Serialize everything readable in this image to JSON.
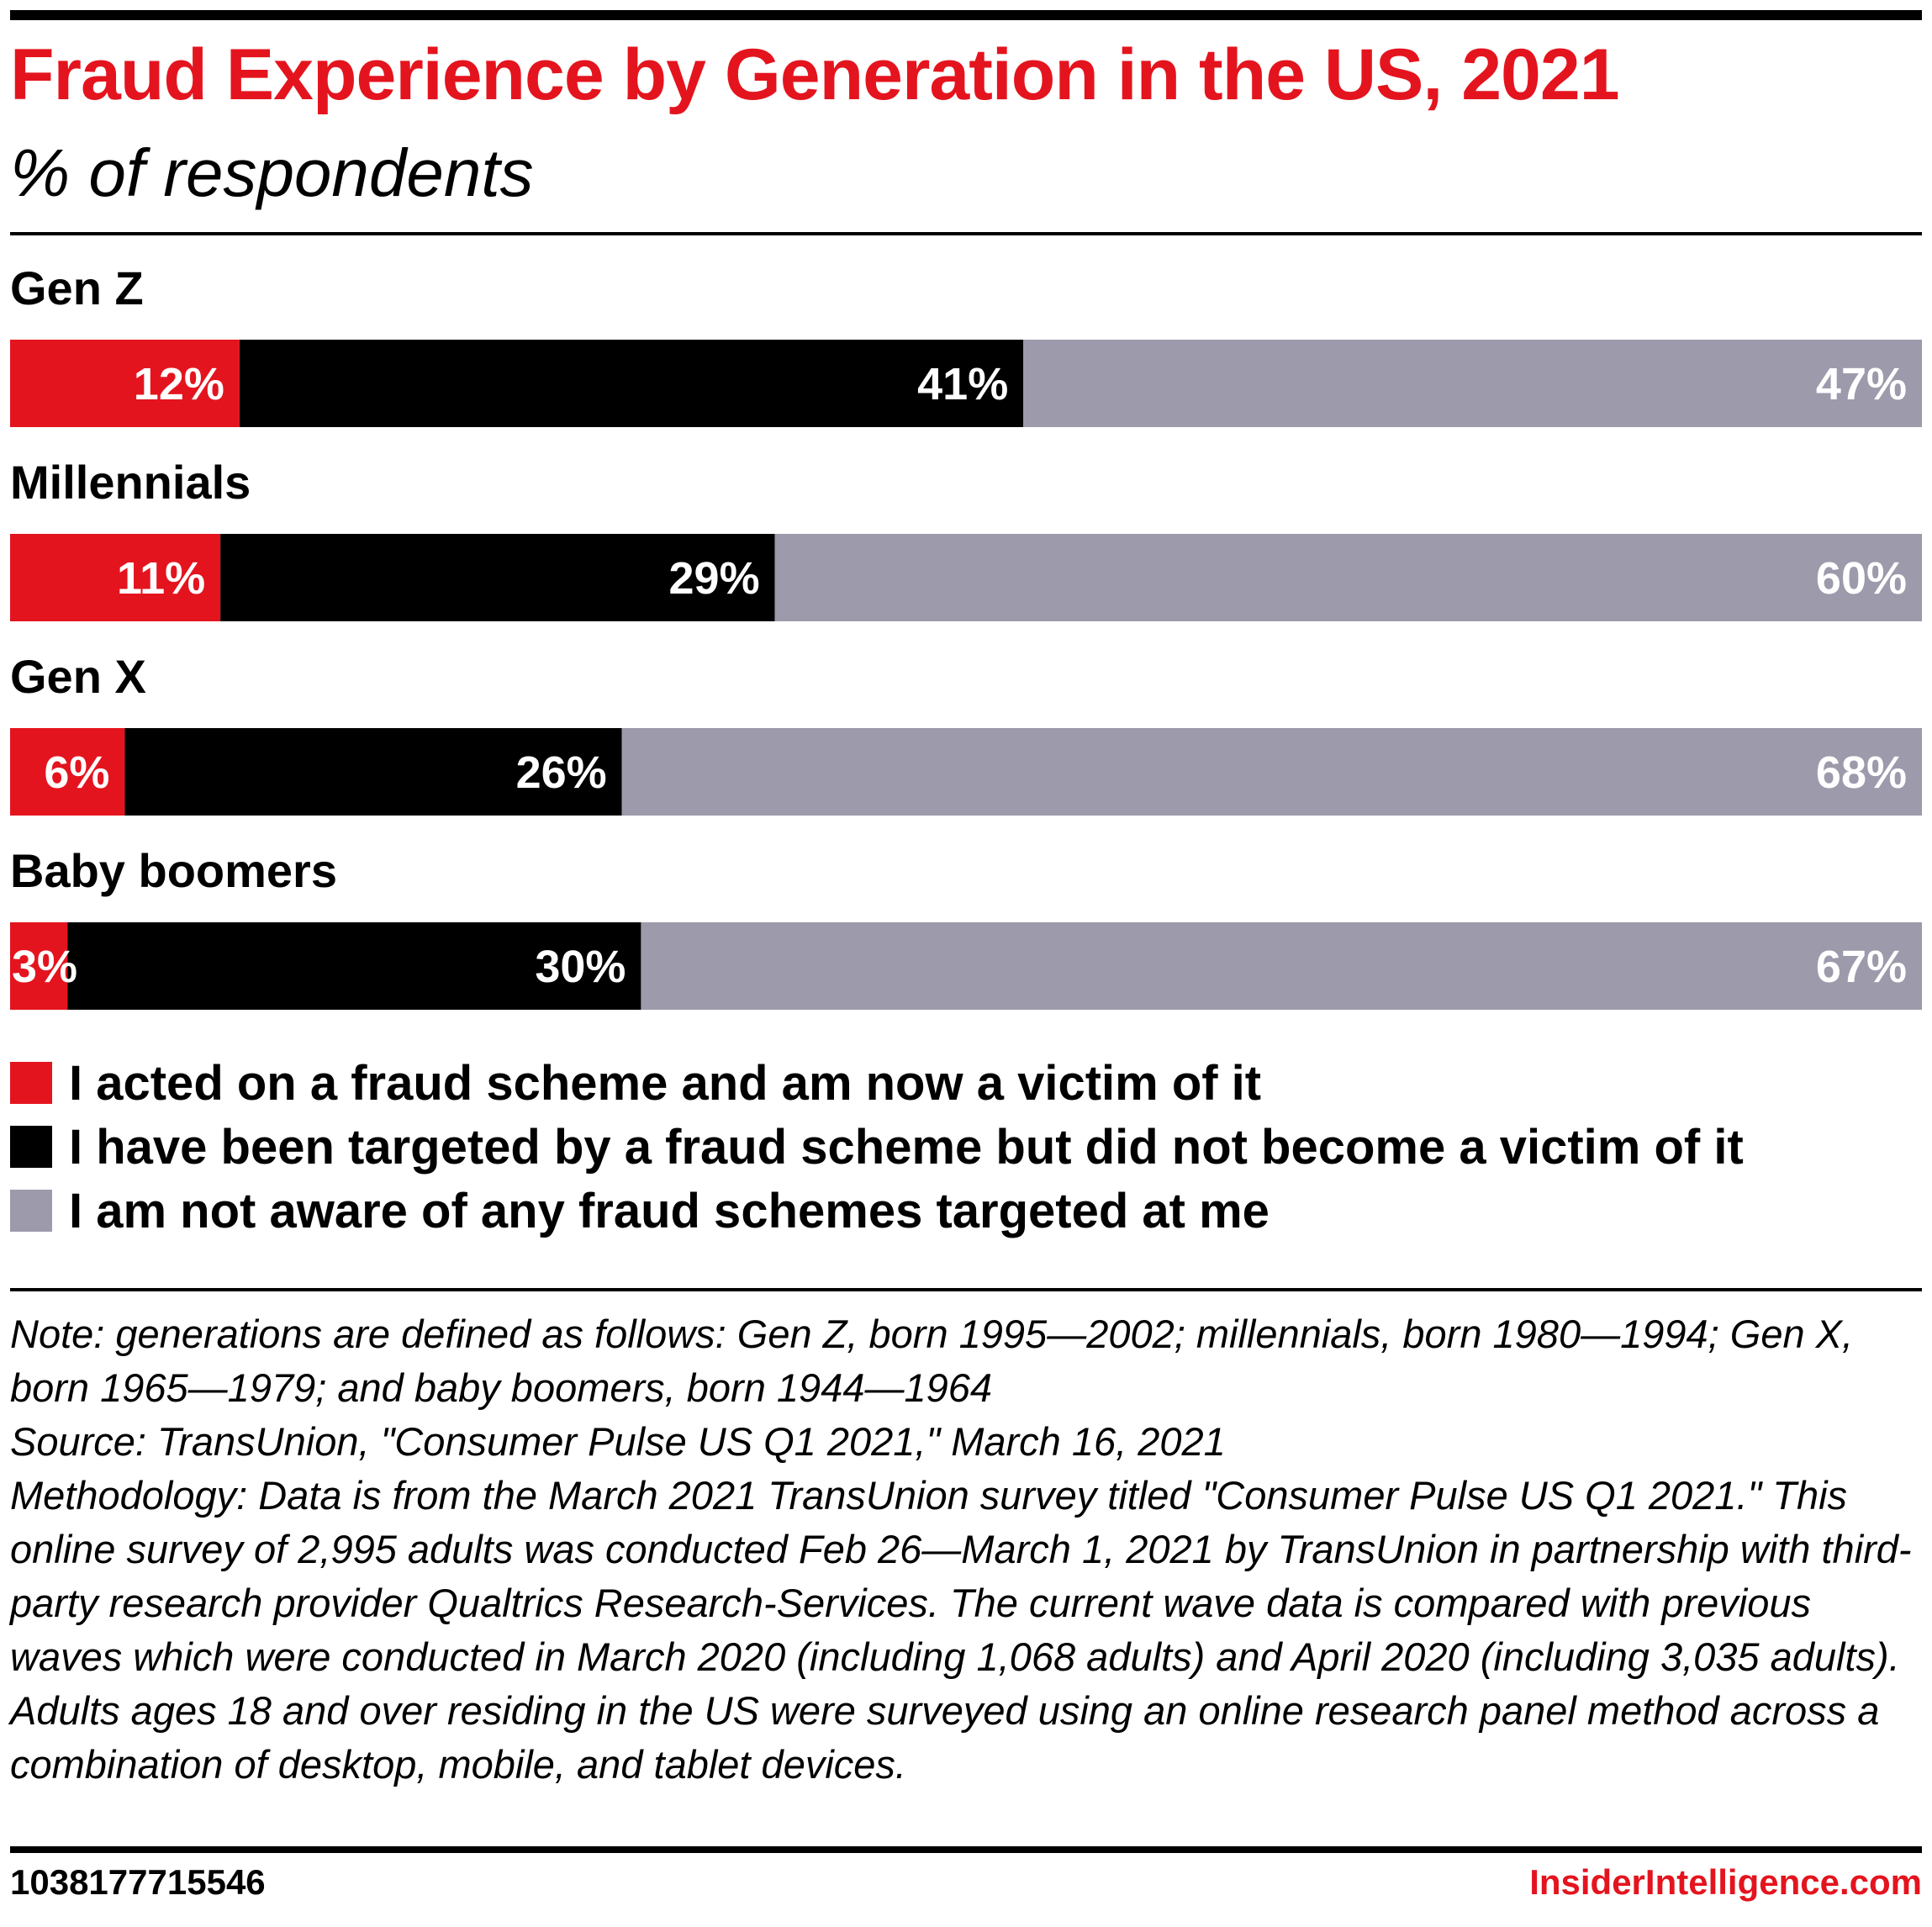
{
  "header": {
    "title": "Fraud Experience by Generation in the US, 2021",
    "subtitle": "% of respondents"
  },
  "chart_data": {
    "type": "bar",
    "orientation": "horizontal",
    "stacked": true,
    "title": "Fraud Experience by Generation in the US, 2021",
    "subtitle": "% of respondents",
    "categories": [
      "Gen Z",
      "Millennials",
      "Gen X",
      "Baby boomers"
    ],
    "series": [
      {
        "name": "I acted on a fraud scheme and am now a victim of it",
        "color": "#e4141e",
        "values": [
          12,
          11,
          6,
          3
        ]
      },
      {
        "name": "I have been targeted by a fraud scheme but did not become a victim of it",
        "color": "#000000",
        "values": [
          41,
          29,
          26,
          30
        ]
      },
      {
        "name": "I am not aware of any fraud schemes targeted at me",
        "color": "#9c9aab",
        "values": [
          47,
          60,
          68,
          67
        ]
      }
    ],
    "value_suffix": "%",
    "xlim": [
      0,
      100
    ],
    "grid": false,
    "legend_position": "bottom"
  },
  "legend": {
    "items": [
      {
        "label": "I acted on a fraud scheme and am now a victim of it",
        "color": "#e4141e"
      },
      {
        "label": "I have been targeted by a fraud scheme but did not become a victim of it",
        "color": "#000000"
      },
      {
        "label": "I am not aware of any fraud schemes targeted at me",
        "color": "#9c9aab"
      }
    ]
  },
  "notes": {
    "note": "Note: generations are defined as follows: Gen Z, born 1995—2002; millennials, born 1980—1994; Gen X, born 1965—1979; and baby boomers, born 1944—1964",
    "source": "Source: TransUnion, \"Consumer Pulse US Q1 2021,\" March 16, 2021",
    "methodology": "Methodology: Data is from the March 2021 TransUnion survey titled \"Consumer Pulse US Q1 2021.\" This online survey of 2,995 adults was conducted Feb 26—March 1, 2021 by TransUnion in partnership with third-party research provider Qualtrics Research-Services. The current wave data is compared with previous waves which were conducted in March 2020 (including 1,068 adults) and April 2020 (including 3,035 adults). Adults ages 18 and over residing in the US were surveyed using an online research panel method across a combination of desktop, mobile, and tablet devices."
  },
  "footer": {
    "chart_id": "1038177715546",
    "brand": "InsiderIntelligence.com"
  },
  "colors": {
    "accent": "#e4141e",
    "victim": "#e4141e",
    "targeted": "#000000",
    "not_aware": "#9c9aab"
  }
}
